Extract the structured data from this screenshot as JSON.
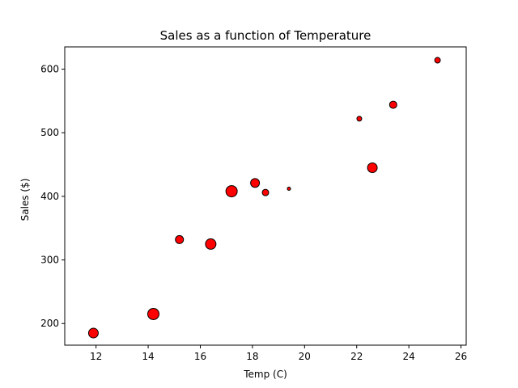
{
  "chart_data": {
    "type": "scatter",
    "title": "Sales as a function of Temperature",
    "xlabel": "Temp (C)",
    "ylabel": "Sales ($)",
    "xlim": [
      10.8,
      26.2
    ],
    "ylim": [
      166,
      635
    ],
    "xticks": [
      12,
      14,
      16,
      18,
      20,
      22,
      24,
      26
    ],
    "yticks": [
      200,
      300,
      400,
      500,
      600
    ],
    "grid": false,
    "marker_color": "#ff0000",
    "marker_edge_color": "#000000",
    "points": [
      {
        "x": 11.9,
        "y": 185,
        "size": 12
      },
      {
        "x": 14.2,
        "y": 215,
        "size": 14
      },
      {
        "x": 15.2,
        "y": 332,
        "size": 10
      },
      {
        "x": 16.4,
        "y": 325,
        "size": 13
      },
      {
        "x": 17.2,
        "y": 408,
        "size": 14
      },
      {
        "x": 18.1,
        "y": 421,
        "size": 11
      },
      {
        "x": 18.5,
        "y": 406,
        "size": 8
      },
      {
        "x": 19.4,
        "y": 412,
        "size": 4
      },
      {
        "x": 22.1,
        "y": 522,
        "size": 6
      },
      {
        "x": 22.6,
        "y": 445,
        "size": 12
      },
      {
        "x": 23.4,
        "y": 544,
        "size": 9
      },
      {
        "x": 25.1,
        "y": 614,
        "size": 7
      }
    ]
  }
}
